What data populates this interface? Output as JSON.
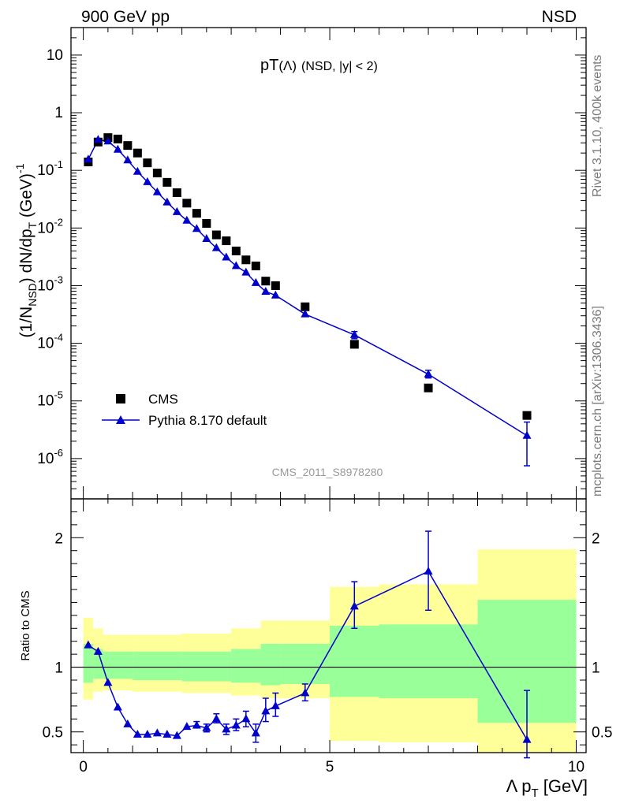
{
  "header": {
    "left_label": "900 GeV pp",
    "right_label": "NSD"
  },
  "side_labels": {
    "rivet": "Rivet 3.1.10,  400k events",
    "mcplots": "mcplots.cern.ch [arXiv:1306.3436]"
  },
  "colors": {
    "data": "#000000",
    "mc": "#0000cc",
    "band_inner": "#99ff99",
    "band_outer": "#ffff99"
  },
  "chart_data": [
    {
      "type": "scatter",
      "scale": "log",
      "title_main": "pT",
      "title_particle": "(Λ)",
      "title_cuts": "(NSD, |y| < 2)",
      "ylabel": {
        "prefix": "(1/N",
        "prefix_sub": "NSD",
        "middle": ") dN/dp",
        "middle_sub": "T",
        "suffix": " (GeV)",
        "suffix_sup": "-1"
      },
      "ylim": [
        2e-07,
        30
      ],
      "xlim": [
        -0.25,
        10.2
      ],
      "y_ticks": [
        {
          "v": 10,
          "m": "10",
          "e": ""
        },
        {
          "v": 1,
          "m": "1",
          "e": ""
        },
        {
          "v": 0.1,
          "m": "10",
          "e": "-1"
        },
        {
          "v": 0.01,
          "m": "10",
          "e": "-2"
        },
        {
          "v": 0.001,
          "m": "10",
          "e": "-3"
        },
        {
          "v": 0.0001,
          "m": "10",
          "e": "-4"
        },
        {
          "v": 1e-05,
          "m": "10",
          "e": "-5"
        },
        {
          "v": 1e-06,
          "m": "10",
          "e": "-6"
        }
      ],
      "watermark": "CMS_2011_S8978280",
      "legend": [
        {
          "label": "CMS",
          "marker": "square"
        },
        {
          "label": "Pythia 8.170 default",
          "marker": "triangle"
        }
      ],
      "series": [
        {
          "name": "CMS",
          "x": [
            0.1,
            0.3,
            0.5,
            0.7,
            0.9,
            1.1,
            1.3,
            1.5,
            1.7,
            1.9,
            2.1,
            2.3,
            2.5,
            2.7,
            2.9,
            3.1,
            3.3,
            3.5,
            3.7,
            3.9,
            4.5,
            5.5,
            7.0,
            9.0
          ],
          "y": [
            0.14,
            0.31,
            0.37,
            0.35,
            0.27,
            0.2,
            0.135,
            0.09,
            0.062,
            0.041,
            0.027,
            0.018,
            0.012,
            0.0076,
            0.006,
            0.004,
            0.0028,
            0.0022,
            0.0012,
            0.001,
            0.00043,
            9.6e-05,
            1.68e-05,
            5.6e-06
          ]
        },
        {
          "name": "Pythia 8.170 default",
          "x": [
            0.1,
            0.3,
            0.5,
            0.7,
            0.9,
            1.1,
            1.3,
            1.5,
            1.7,
            1.9,
            2.1,
            2.3,
            2.5,
            2.7,
            2.9,
            3.1,
            3.3,
            3.5,
            3.7,
            3.9,
            4.5,
            5.5,
            7.0,
            9.0
          ],
          "y": [
            0.155,
            0.34,
            0.32,
            0.23,
            0.15,
            0.095,
            0.063,
            0.042,
            0.028,
            0.019,
            0.0135,
            0.0097,
            0.0065,
            0.0045,
            0.0031,
            0.0022,
            0.0017,
            0.00112,
            0.00079,
            0.00068,
            0.00032,
            0.00014,
            2.9e-05,
            2.5e-06
          ],
          "err_lo": [
            null,
            null,
            null,
            null,
            null,
            null,
            null,
            null,
            null,
            null,
            null,
            null,
            null,
            null,
            null,
            null,
            null,
            null,
            null,
            null,
            null,
            0.00012,
            2.5e-05,
            7.5e-07
          ],
          "err_hi": [
            null,
            null,
            null,
            null,
            null,
            null,
            null,
            null,
            null,
            null,
            null,
            null,
            null,
            null,
            null,
            null,
            null,
            null,
            null,
            null,
            null,
            0.00016,
            3.4e-05,
            4.3e-06
          ]
        }
      ]
    },
    {
      "type": "line",
      "scale": "linear",
      "ylabel": "Ratio to CMS",
      "xlabel": {
        "symbol": "Λ p",
        "sub": "T",
        "unit": " [GeV]"
      },
      "xlim": [
        -0.25,
        10.2
      ],
      "ylim": [
        0.34,
        2.3
      ],
      "x_ticks": [
        0,
        5,
        10
      ],
      "y_ticks": [
        0.5,
        1,
        2
      ],
      "reference_line": 1,
      "bands": [
        {
          "x0": 0.0,
          "x1": 0.2,
          "outer_lo": 0.75,
          "outer_hi": 1.38,
          "inner_lo": 0.88,
          "inner_hi": 1.18
        },
        {
          "x0": 0.2,
          "x1": 0.4,
          "outer_lo": 0.81,
          "outer_hi": 1.3,
          "inner_lo": 0.91,
          "inner_hi": 1.14
        },
        {
          "x0": 0.4,
          "x1": 1.0,
          "outer_lo": 0.82,
          "outer_hi": 1.25,
          "inner_lo": 0.91,
          "inner_hi": 1.12
        },
        {
          "x0": 1.0,
          "x1": 2.0,
          "outer_lo": 0.81,
          "outer_hi": 1.25,
          "inner_lo": 0.9,
          "inner_hi": 1.12
        },
        {
          "x0": 2.0,
          "x1": 3.0,
          "outer_lo": 0.8,
          "outer_hi": 1.26,
          "inner_lo": 0.89,
          "inner_hi": 1.12
        },
        {
          "x0": 3.0,
          "x1": 3.6,
          "outer_lo": 0.78,
          "outer_hi": 1.3,
          "inner_lo": 0.88,
          "inner_hi": 1.14
        },
        {
          "x0": 3.6,
          "x1": 4.0,
          "outer_lo": 0.76,
          "outer_hi": 1.36,
          "inner_lo": 0.86,
          "inner_hi": 1.18
        },
        {
          "x0": 4.0,
          "x1": 5.0,
          "outer_lo": 0.76,
          "outer_hi": 1.36,
          "inner_lo": 0.87,
          "inner_hi": 1.18
        },
        {
          "x0": 5.0,
          "x1": 6.0,
          "outer_lo": 0.43,
          "outer_hi": 1.62,
          "inner_lo": 0.77,
          "inner_hi": 1.32
        },
        {
          "x0": 6.0,
          "x1": 8.0,
          "outer_lo": 0.42,
          "outer_hi": 1.64,
          "inner_lo": 0.76,
          "inner_hi": 1.33
        },
        {
          "x0": 8.0,
          "x1": 10.0,
          "outer_lo": 0.3,
          "outer_hi": 1.91,
          "inner_lo": 0.57,
          "inner_hi": 1.52
        }
      ],
      "series": [
        {
          "name": "Pythia 8.170 default / CMS",
          "x": [
            0.1,
            0.3,
            0.5,
            0.7,
            0.9,
            1.1,
            1.3,
            1.5,
            1.7,
            1.9,
            2.1,
            2.3,
            2.5,
            2.7,
            2.9,
            3.1,
            3.3,
            3.5,
            3.7,
            3.9,
            4.5,
            5.5,
            7.0,
            9.0
          ],
          "y": [
            1.17,
            1.12,
            0.88,
            0.69,
            0.56,
            0.48,
            0.48,
            0.49,
            0.48,
            0.47,
            0.54,
            0.55,
            0.53,
            0.6,
            0.52,
            0.55,
            0.6,
            0.49,
            0.66,
            0.7,
            0.8,
            1.47,
            1.74,
            0.44
          ],
          "err_lo": [
            null,
            null,
            null,
            null,
            null,
            null,
            null,
            null,
            null,
            null,
            null,
            0.53,
            0.5,
            0.57,
            0.48,
            0.51,
            0.54,
            0.42,
            0.58,
            0.62,
            0.74,
            1.3,
            1.44,
            0.3
          ],
          "err_hi": [
            null,
            null,
            null,
            null,
            null,
            null,
            null,
            null,
            null,
            null,
            null,
            0.58,
            0.56,
            0.64,
            0.56,
            0.6,
            0.66,
            0.56,
            0.76,
            0.8,
            0.87,
            1.66,
            2.05,
            0.82
          ]
        }
      ]
    }
  ]
}
